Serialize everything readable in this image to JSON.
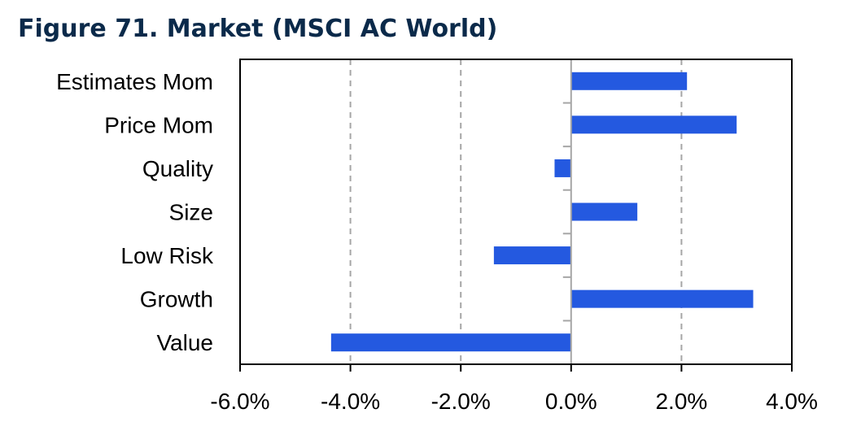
{
  "title": "Figure 71. Market (MSCI AC World)",
  "chart_data": {
    "type": "bar",
    "orientation": "horizontal",
    "categories": [
      "Estimates Mom",
      "Price Mom",
      "Quality",
      "Size",
      "Low Risk",
      "Growth",
      "Value"
    ],
    "values": [
      2.1,
      3.0,
      -0.3,
      1.2,
      -1.4,
      3.3,
      -4.35
    ],
    "xlim": [
      -6.0,
      4.0
    ],
    "xticks": [
      -6.0,
      -4.0,
      -2.0,
      0.0,
      2.0,
      4.0
    ],
    "xtick_labels": [
      "-6.0%",
      "-4.0%",
      "-2.0%",
      "0.0%",
      "2.0%",
      "4.0%"
    ],
    "xlabel": "",
    "ylabel": "",
    "grid": "vertical dashed",
    "bar_color": "#2459e0",
    "gridline_color": "#a6a6a6",
    "title_color": "#0b2a4a"
  }
}
